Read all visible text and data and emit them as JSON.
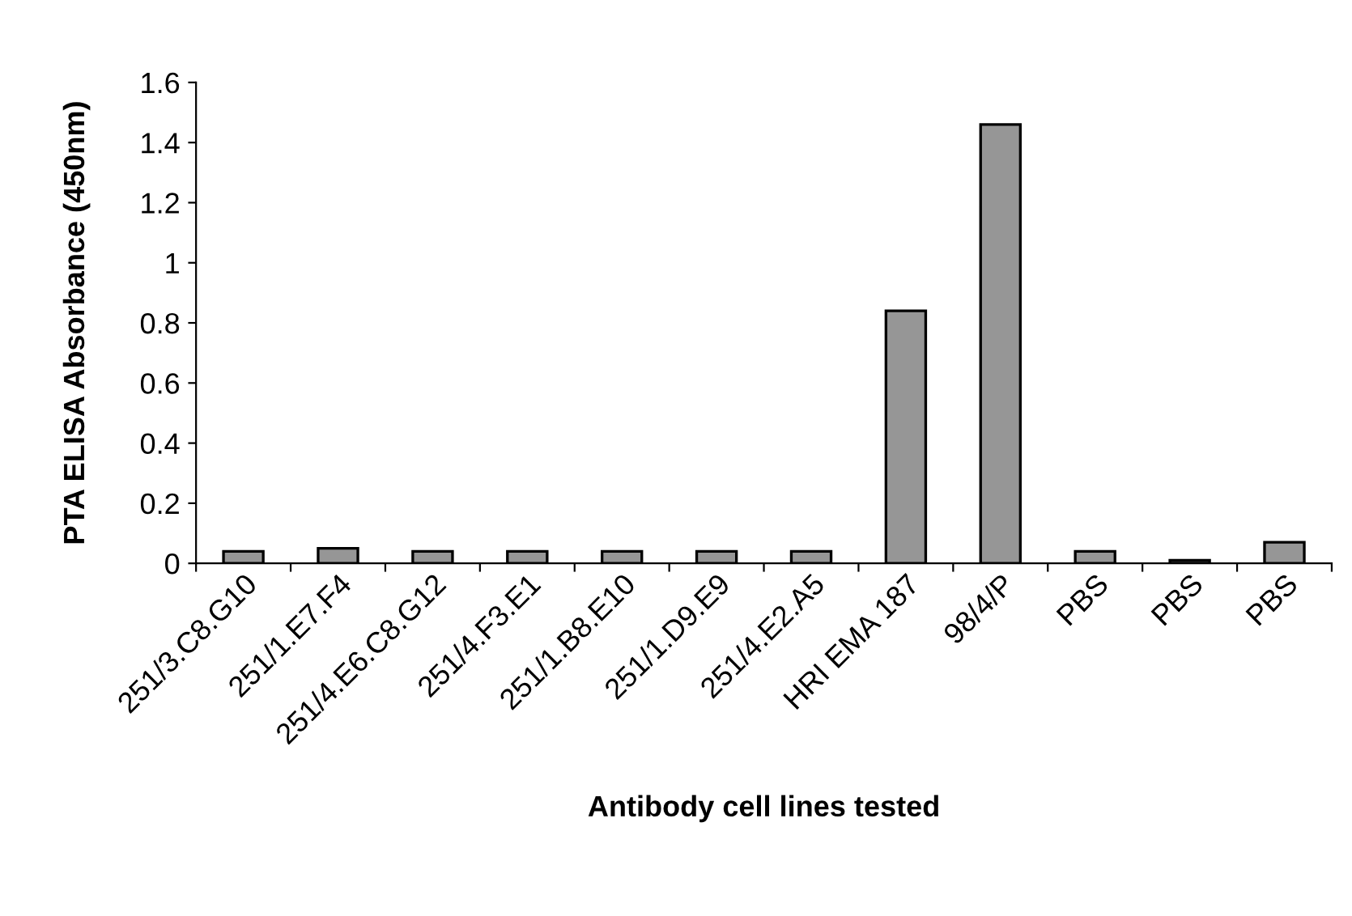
{
  "chart_data": {
    "type": "bar",
    "xlabel": "Antibody cell lines tested",
    "ylabel": "PTA ELISA Absorbance (450nm)",
    "categories": [
      "251/3.C8.G10",
      "251/1.E7.F4",
      "251/4.E6.C8.G12",
      "251/4.F3.E1",
      "251/1.B8.E10",
      "251/1.D9.E9",
      "251/4.E2.A5",
      "HRI EMA 187",
      "98/4/P",
      "PBS",
      "PBS",
      "PBS"
    ],
    "values": [
      0.04,
      0.05,
      0.04,
      0.04,
      0.04,
      0.04,
      0.04,
      0.84,
      1.46,
      0.04,
      0.01,
      0.07
    ],
    "color": "#969696",
    "ylim": [
      0,
      1.6
    ],
    "yticks": [
      0,
      0.2,
      0.4,
      0.6,
      0.8,
      1,
      1.2,
      1.4,
      1.6
    ],
    "grid": false,
    "legend": false
  }
}
